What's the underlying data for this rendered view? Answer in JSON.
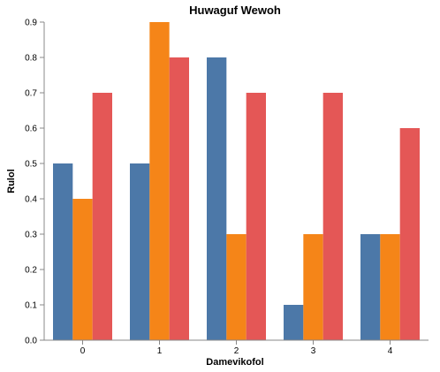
{
  "chart_data": {
    "type": "bar",
    "title": "Huwaguf Wewoh",
    "xlabel": "Damevikofol",
    "ylabel": "Rulol",
    "categories": [
      "0",
      "1",
      "2",
      "3",
      "4"
    ],
    "series": [
      {
        "values": [
          0.5,
          0.5,
          0.8,
          0.1,
          0.3
        ],
        "color": "#4c78a8"
      },
      {
        "values": [
          0.4,
          0.9,
          0.3,
          0.3,
          0.3
        ],
        "color": "#f58518"
      },
      {
        "values": [
          0.7,
          0.8,
          0.7,
          0.7,
          0.6
        ],
        "color": "#e45756"
      }
    ],
    "ylim": [
      0,
      0.9
    ],
    "yticks": [
      "0.0",
      "0.1",
      "0.2",
      "0.3",
      "0.4",
      "0.5",
      "0.6",
      "0.7",
      "0.8",
      "0.9"
    ],
    "grid": false,
    "legend": "none"
  }
}
